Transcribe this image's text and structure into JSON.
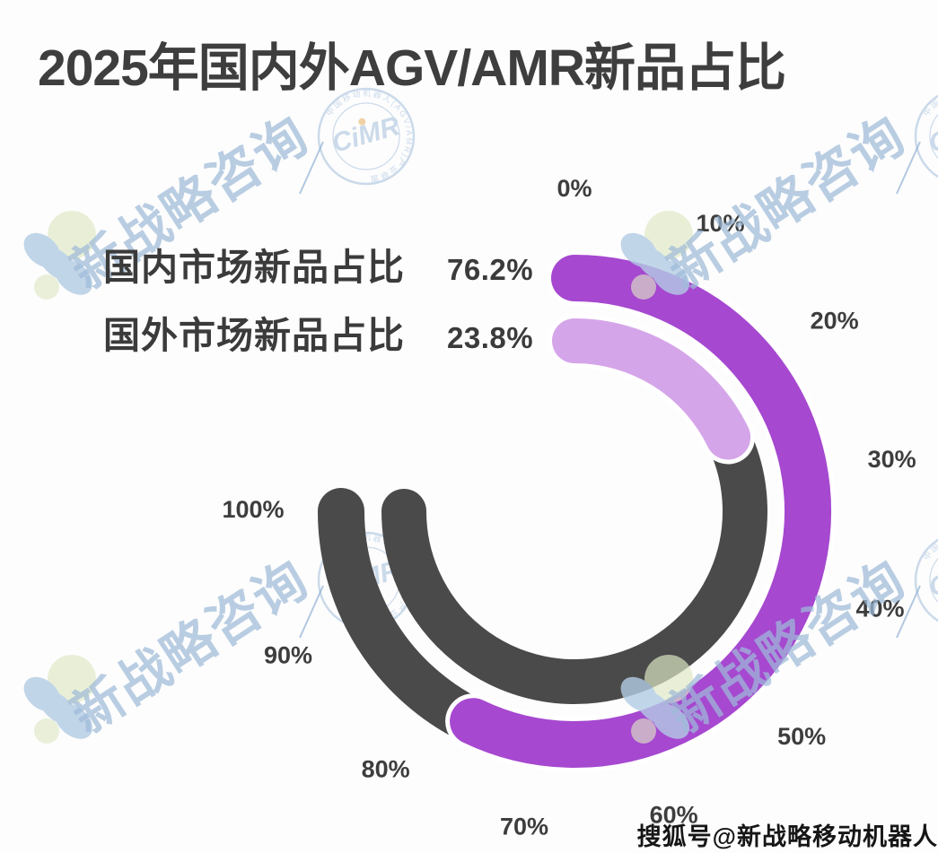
{
  "page": {
    "title": "2025年国内外AGV/AMR新品占比",
    "credit": "搜狐号@新战略移动机器人",
    "background": "#fdfdfd"
  },
  "legend": {
    "items": [
      {
        "label": "国内市场新品占比",
        "value": "76.2%"
      },
      {
        "label": "国外市场新品占比",
        "value": "23.8%"
      }
    ]
  },
  "chart_data": {
    "type": "radial-progress",
    "title": "2025年国内外AGV/AMR新品占比",
    "unit": "percent",
    "scale": {
      "min": 0,
      "max": 100,
      "start_angle_deg": 0,
      "end_angle_deg": 270,
      "tick_step": 10,
      "direction": "clockwise",
      "zero_position": "top"
    },
    "tick_labels": [
      "0%",
      "10%",
      "20%",
      "30%",
      "40%",
      "50%",
      "60%",
      "70%",
      "80%",
      "90%",
      "100%"
    ],
    "series": [
      {
        "name": "国内市场新品占比",
        "value": 76.2,
        "display": "76.2%",
        "color": "#a648d0",
        "ring": "outer"
      },
      {
        "name": "国外市场新品占比",
        "value": 23.8,
        "display": "23.8%",
        "color": "#d5a5e9",
        "ring": "inner"
      }
    ],
    "track_color": "#4a4a4a",
    "legend_position": "left"
  },
  "theme": {
    "title_color": "#3e3e3e",
    "text_color": "#3b3b3b",
    "tick_color": "#3d3d3d",
    "halo_color": "#ffffff",
    "watermark_blue": "#9fbbd9",
    "watermark_stamp_blue": "#8fb0d4",
    "watermark_green": "#dfe9c6",
    "watermark_orange": "#e09c3a",
    "credit_color": "#161616"
  },
  "watermark": {
    "brand_text": "新战略咨询",
    "stamp_text": "CiMR",
    "stamp_ring_text": "中国移动机器人(AGV/AMR)产业联盟"
  }
}
